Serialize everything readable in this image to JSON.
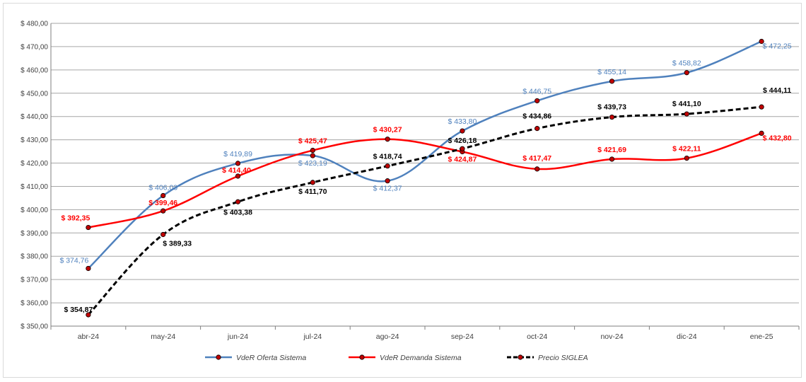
{
  "chart_data": {
    "type": "line",
    "title": "",
    "xlabel": "",
    "ylabel": "",
    "ylim": [
      350,
      480
    ],
    "yticks": [
      "$ 350,00",
      "$ 360,00",
      "$ 370,00",
      "$ 380,00",
      "$ 390,00",
      "$ 400,00",
      "$ 410,00",
      "$ 420,00",
      "$ 430,00",
      "$ 440,00",
      "$ 450,00",
      "$ 460,00",
      "$ 470,00",
      "$ 480,00"
    ],
    "categories": [
      "abr-24",
      "may-24",
      "jun-24",
      "jul-24",
      "ago-24",
      "sep-24",
      "oct-24",
      "nov-24",
      "dic-24",
      "ene-25"
    ],
    "grid": "horizontal",
    "legend_position": "bottom",
    "series": [
      {
        "name": "VdeR Oferta Sistema",
        "color": "#4f81bd",
        "label_color": "#4f81bd",
        "dashed": false,
        "values": [
          374.76,
          406.03,
          419.89,
          423.19,
          412.37,
          433.8,
          446.75,
          455.14,
          458.82,
          472.25
        ],
        "labels": [
          "$ 374,76",
          "$ 406,03",
          "$ 419,89",
          "$ 423,19",
          "$ 412,37",
          "$ 433,80",
          "$ 446,75",
          "$ 455,14",
          "$ 458,82",
          "$ 472,25"
        ]
      },
      {
        "name": "VdeR Demanda Sistema",
        "color": "#ff0000",
        "label_color": "#ff0000",
        "dashed": false,
        "values": [
          392.35,
          399.46,
          414.4,
          425.47,
          430.27,
          424.87,
          417.47,
          421.69,
          422.11,
          432.8
        ],
        "labels": [
          "$ 392,35",
          "$ 399,46",
          "$ 414,40",
          "$ 425,47",
          "$ 430,27",
          "$ 424,87",
          "$ 417,47",
          "$ 421,69",
          "$ 422,11",
          "$ 432,80"
        ]
      },
      {
        "name": "Precio SIGLEA",
        "color": "#000000",
        "label_color": "#000000",
        "dashed": true,
        "values": [
          354.87,
          389.33,
          403.38,
          411.7,
          418.74,
          426.18,
          434.86,
          439.73,
          441.1,
          444.11
        ],
        "labels": [
          "$ 354,87",
          "$ 389,33",
          "$ 403,38",
          "$ 411,70",
          "$ 418,74",
          "$ 426,18",
          "$ 434,86",
          "$ 439,73",
          "$ 441,10",
          "$ 444,11"
        ]
      }
    ],
    "marker_color": "#c00000"
  }
}
